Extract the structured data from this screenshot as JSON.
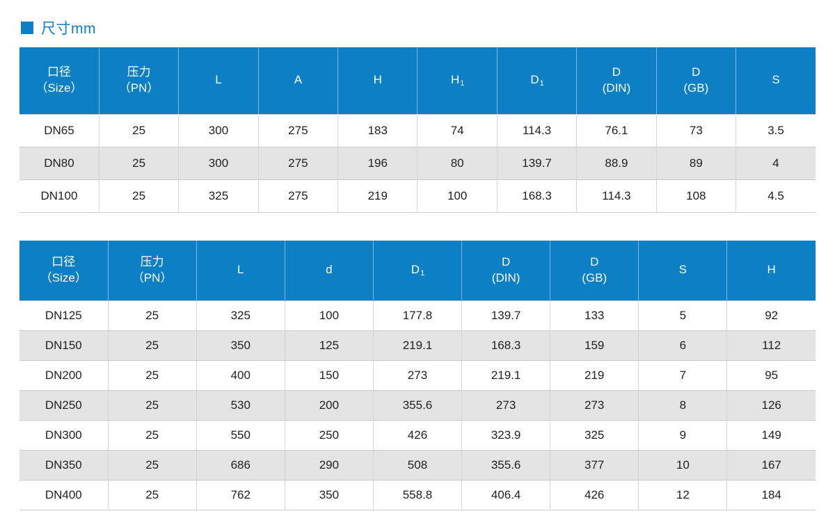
{
  "page": {
    "title": "尺寸mm",
    "accent_color": "#0d80c5",
    "stripe_color": "#e4e4e4",
    "header_text_color": "#ffffff"
  },
  "tables": [
    {
      "name": "dimensions-table-small-sizes",
      "headers": [
        {
          "line1": "口径",
          "line2": "（Size）"
        },
        {
          "line1": "压力",
          "line2": "（PN）"
        },
        {
          "line1": "L"
        },
        {
          "line1": "A"
        },
        {
          "line1": "H"
        },
        {
          "line1": "H",
          "subscript": "1"
        },
        {
          "line1": "D",
          "subscript": "1"
        },
        {
          "line1": "D",
          "line2": "(DIN)"
        },
        {
          "line1": "D",
          "line2": "(GB)"
        },
        {
          "line1": "S"
        }
      ],
      "rows": [
        [
          "DN65",
          "25",
          "300",
          "275",
          "183",
          "74",
          "114.3",
          "76.1",
          "73",
          "3.5"
        ],
        [
          "DN80",
          "25",
          "300",
          "275",
          "196",
          "80",
          "139.7",
          "88.9",
          "89",
          "4"
        ],
        [
          "DN100",
          "25",
          "325",
          "275",
          "219",
          "100",
          "168.3",
          "114.3",
          "108",
          "4.5"
        ]
      ]
    },
    {
      "name": "dimensions-table-large-sizes",
      "headers": [
        {
          "line1": "口径",
          "line2": "（Size）"
        },
        {
          "line1": "压力",
          "line2": "（PN）"
        },
        {
          "line1": "L"
        },
        {
          "line1": "d"
        },
        {
          "line1": "D",
          "subscript": "1"
        },
        {
          "line1": "D",
          "line2": "(DIN)"
        },
        {
          "line1": "D",
          "line2": "(GB)"
        },
        {
          "line1": "S"
        },
        {
          "line1": "H"
        }
      ],
      "rows": [
        [
          "DN125",
          "25",
          "325",
          "100",
          "177.8",
          "139.7",
          "133",
          "5",
          "92"
        ],
        [
          "DN150",
          "25",
          "350",
          "125",
          "219.1",
          "168.3",
          "159",
          "6",
          "112"
        ],
        [
          "DN200",
          "25",
          "400",
          "150",
          "273",
          "219.1",
          "219",
          "7",
          "95"
        ],
        [
          "DN250",
          "25",
          "530",
          "200",
          "355.6",
          "273",
          "273",
          "8",
          "126"
        ],
        [
          "DN300",
          "25",
          "550",
          "250",
          "426",
          "323.9",
          "325",
          "9",
          "149"
        ],
        [
          "DN350",
          "25",
          "686",
          "290",
          "508",
          "355.6",
          "377",
          "10",
          "167"
        ],
        [
          "DN400",
          "25",
          "762",
          "350",
          "558.8",
          "406.4",
          "426",
          "12",
          "184"
        ]
      ]
    }
  ]
}
